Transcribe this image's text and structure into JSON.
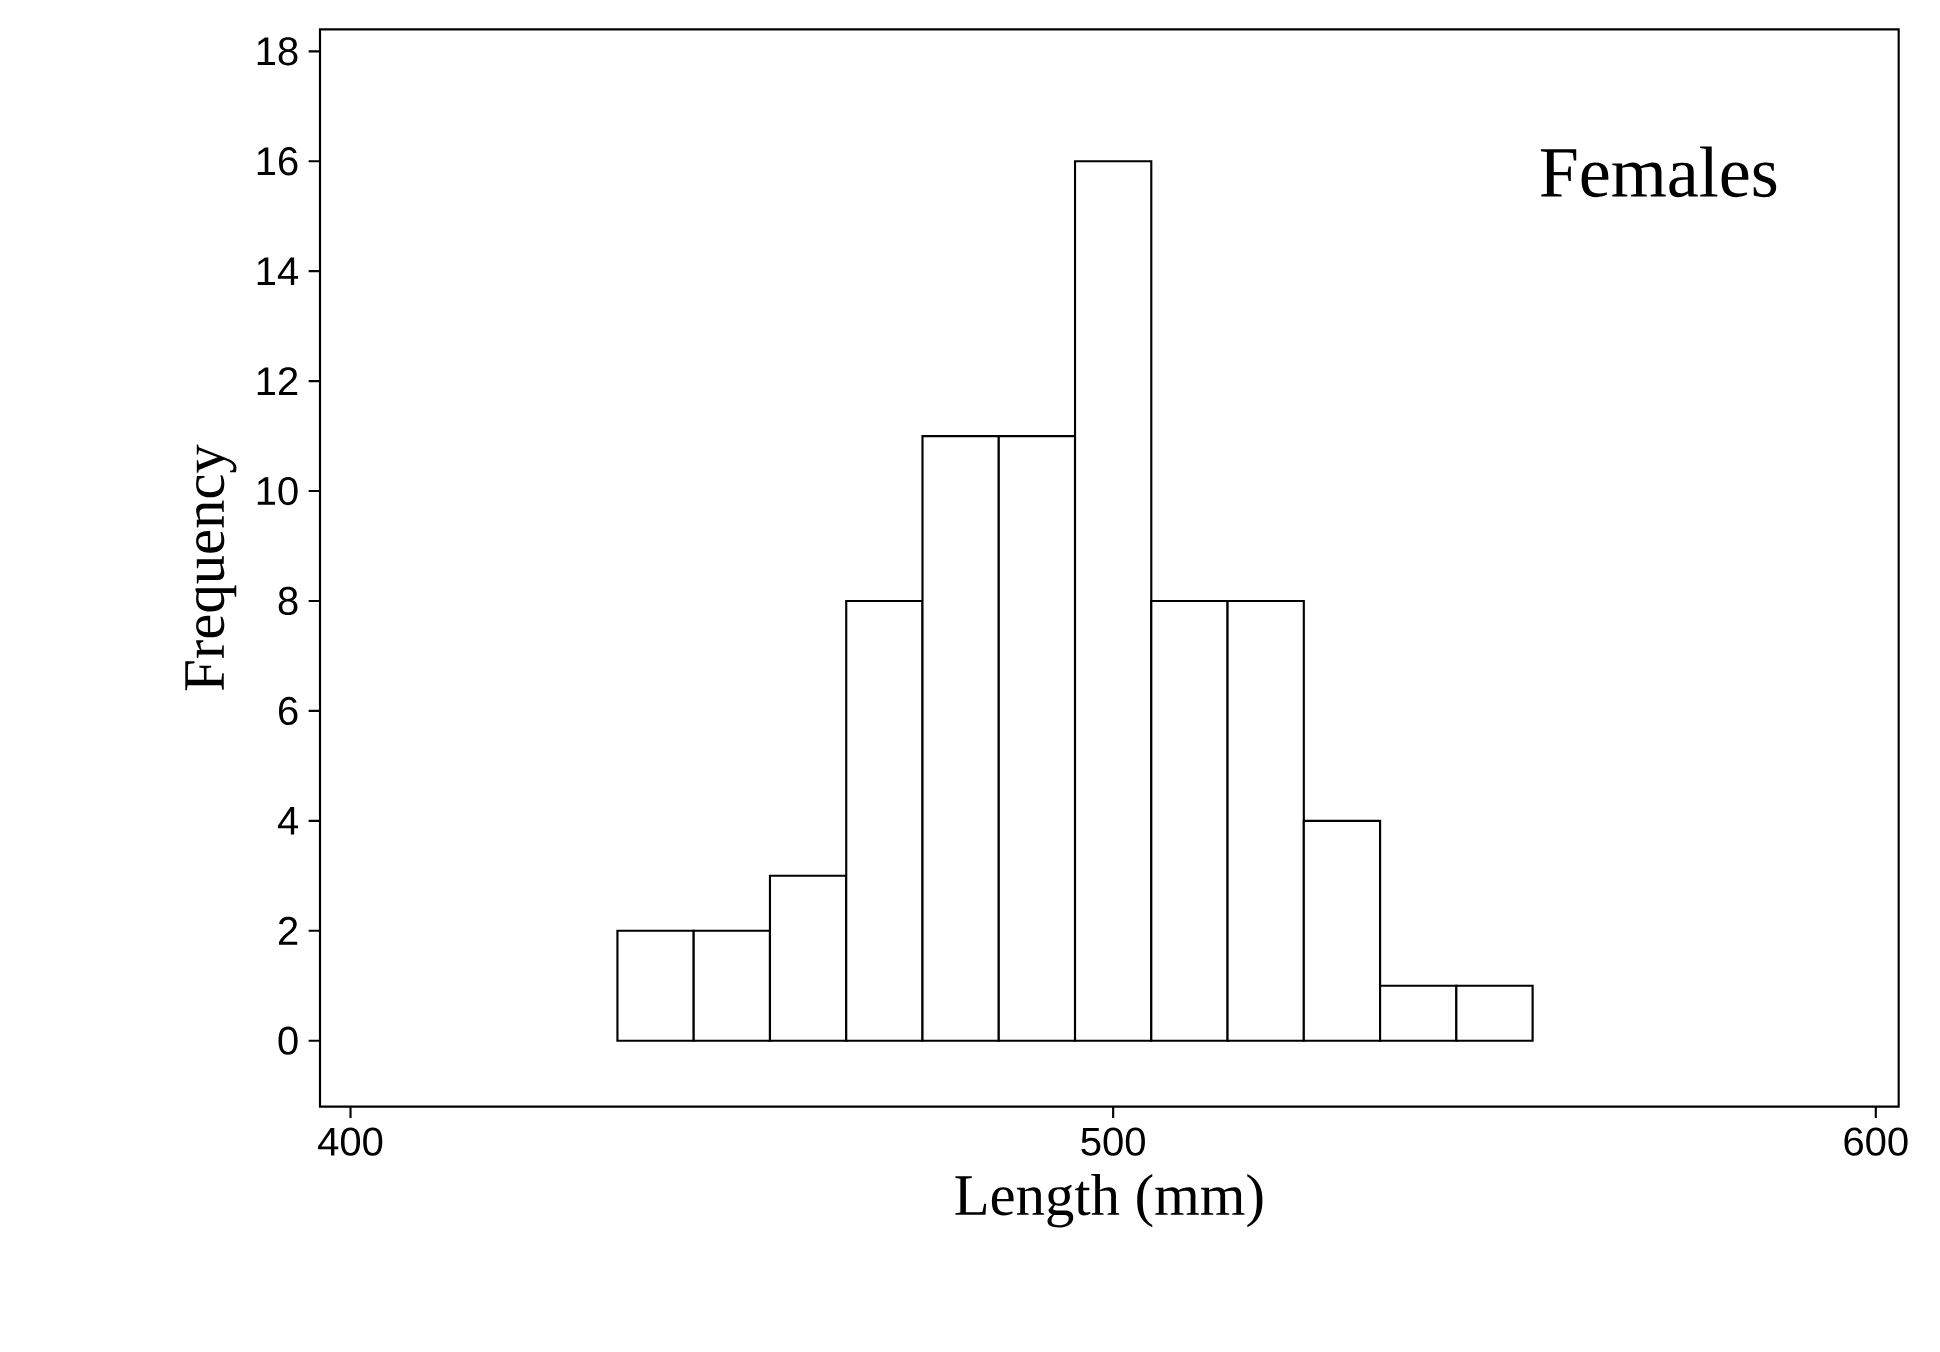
{
  "chart_data": {
    "type": "histogram",
    "xlabel": "Length (mm)",
    "ylabel": "Frequency",
    "annotations": [
      "Females"
    ],
    "bins": [
      435,
      445,
      455,
      465,
      475,
      485,
      495,
      505,
      515,
      525,
      535,
      545,
      555
    ],
    "values": [
      2,
      2,
      3,
      8,
      11,
      11,
      16,
      8,
      8,
      4,
      1,
      1
    ],
    "color": "#ffffff",
    "xlim": [
      396,
      603
    ],
    "ylim": [
      -1.2,
      18.4
    ],
    "xticks": [
      400,
      500,
      600
    ],
    "yticks": [
      0,
      2,
      4,
      6,
      8,
      10,
      12,
      14,
      16,
      18
    ]
  }
}
